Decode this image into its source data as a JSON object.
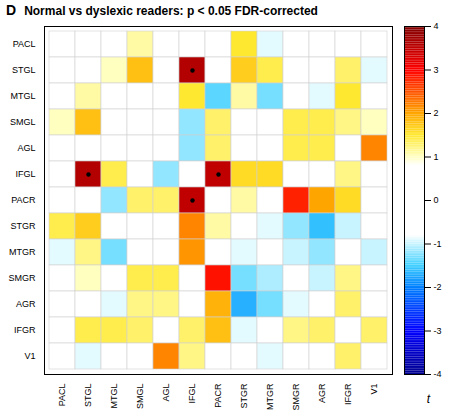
{
  "chart_data": {
    "type": "heatmap",
    "panel_label": "D",
    "title": "Normal vs dyslexic readers: p < 0.05 FDR-corrected",
    "rows": [
      "PACL",
      "STGL",
      "MTGL",
      "SMGL",
      "AGL",
      "IFGL",
      "PACR",
      "STGR",
      "MTGR",
      "SMGR",
      "AGR",
      "IFGR",
      "V1"
    ],
    "columns": [
      "PACL",
      "STGL",
      "MTGL",
      "SMGL",
      "AGL",
      "IFGL",
      "PACR",
      "STGR",
      "MTGR",
      "SMGR",
      "AGR",
      "IFGR",
      "V1"
    ],
    "values": [
      [
        0,
        0,
        0,
        1.1,
        0,
        0,
        0,
        1.5,
        -0.9,
        0,
        0,
        0,
        0
      ],
      [
        0,
        0,
        1.0,
        1.8,
        0,
        3.6,
        0,
        1.7,
        1.4,
        0,
        0,
        1.3,
        -0.9
      ],
      [
        0,
        1.1,
        0,
        0,
        0,
        1.5,
        -1.4,
        1.1,
        -1.3,
        0,
        -0.9,
        1.5,
        0
      ],
      [
        1.0,
        1.8,
        0,
        0,
        0,
        -1.2,
        1.3,
        0,
        0,
        1.4,
        1.4,
        1.2,
        1.0
      ],
      [
        0,
        0,
        0,
        0,
        0,
        -1.2,
        1.3,
        0,
        0,
        1.4,
        1.4,
        0,
        2.2
      ],
      [
        0,
        3.6,
        1.4,
        0,
        -1.2,
        0,
        3.5,
        1.6,
        1.6,
        0,
        0,
        1.2,
        0
      ],
      [
        0,
        0,
        -1.2,
        1.3,
        1.3,
        3.5,
        0,
        1.1,
        0,
        2.8,
        2.0,
        1.6,
        0
      ],
      [
        1.4,
        1.7,
        0,
        0,
        0,
        2.2,
        1.1,
        0,
        -0.9,
        -1.2,
        -1.6,
        -1.0,
        0
      ],
      [
        -0.9,
        1.2,
        -1.3,
        0,
        0,
        2.1,
        0,
        -0.9,
        0,
        -1.0,
        -1.2,
        0,
        -1.0
      ],
      [
        0,
        1.0,
        0,
        1.4,
        1.4,
        0,
        2.9,
        -1.3,
        -1.1,
        0,
        -1.0,
        1.2,
        0
      ],
      [
        0,
        0,
        -0.9,
        1.2,
        1.2,
        0,
        1.9,
        -1.7,
        -1.3,
        -0.9,
        0,
        1.3,
        0
      ],
      [
        0,
        1.4,
        1.4,
        1.3,
        0,
        1.3,
        1.8,
        -0.9,
        0,
        1.2,
        1.3,
        0,
        1.3
      ],
      [
        0,
        -0.9,
        0,
        0,
        2.2,
        1.2,
        0,
        0,
        -0.9,
        0,
        0,
        1.3,
        0
      ]
    ],
    "significant": [
      [
        "STGL",
        "IFGL"
      ],
      [
        "IFGL",
        "STGL"
      ],
      [
        "IFGL",
        "PACR"
      ],
      [
        "PACR",
        "IFGL"
      ]
    ],
    "colorbar": {
      "label": "t",
      "range": [
        -4,
        4
      ],
      "ticks": [
        -4,
        -3,
        -2,
        -1,
        0,
        1,
        2,
        3,
        4
      ]
    }
  }
}
